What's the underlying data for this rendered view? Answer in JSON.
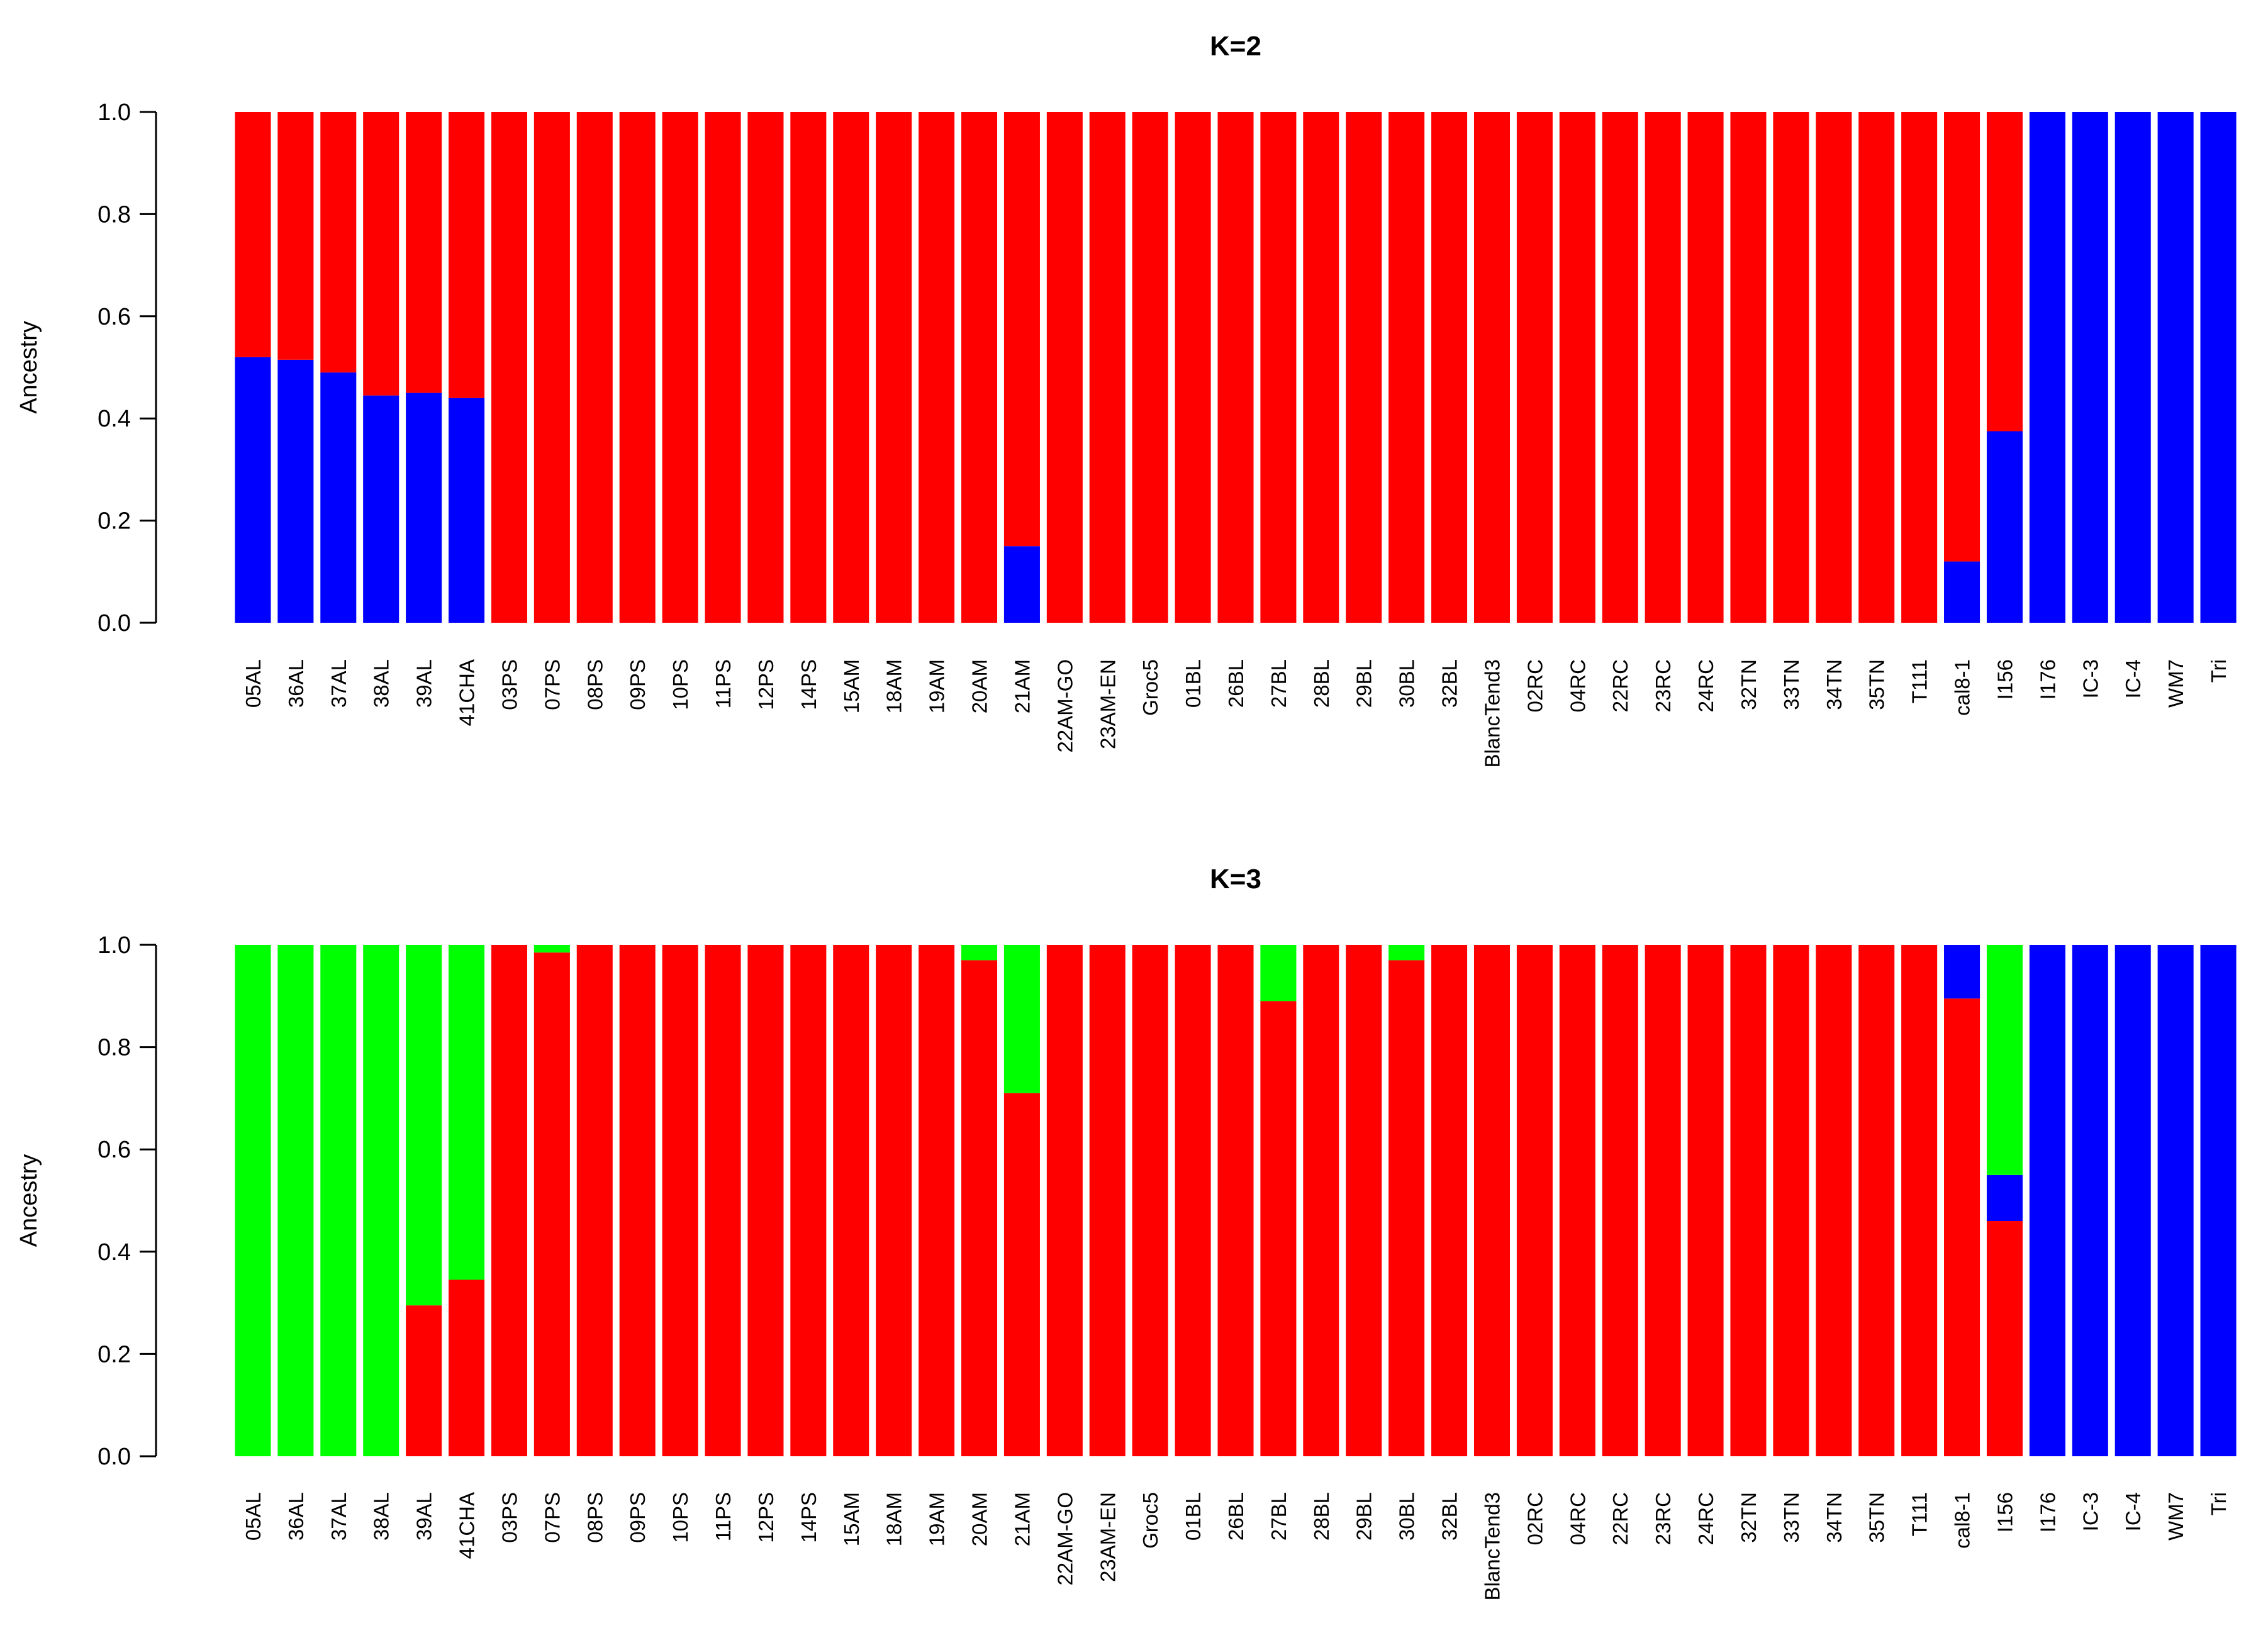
{
  "colors": {
    "blue": "#0000ff",
    "red": "#ff0000",
    "green": "#00ff00"
  },
  "chart_data": [
    {
      "type": "bar",
      "stacked": true,
      "title": "K=2",
      "ylabel": "Ancestry",
      "xlabel": "",
      "ylim": [
        0,
        1
      ],
      "yticks": [
        "0.0",
        "0.2",
        "0.4",
        "0.6",
        "0.8",
        "1.0"
      ],
      "grid": false,
      "categories": [
        "05AL",
        "36AL",
        "37AL",
        "38AL",
        "39AL",
        "41CHA",
        "03PS",
        "07PS",
        "08PS",
        "09PS",
        "10PS",
        "11PS",
        "12PS",
        "14PS",
        "15AM",
        "18AM",
        "19AM",
        "20AM",
        "21AM",
        "22AM-GO",
        "23AM-EN",
        "Groc5",
        "01BL",
        "26BL",
        "27BL",
        "28BL",
        "29BL",
        "30BL",
        "32BL",
        "BlancTend3",
        "02RC",
        "04RC",
        "22RC",
        "23RC",
        "24RC",
        "32TN",
        "33TN",
        "34TN",
        "35TN",
        "T111",
        "cal8-1",
        "I156",
        "I176",
        "IC-3",
        "IC-4",
        "WM7",
        "Tri"
      ],
      "series": [
        {
          "color": "#0000ff",
          "values": [
            0.52,
            0.515,
            0.49,
            0.445,
            0.45,
            0.44,
            0,
            0,
            0,
            0,
            0,
            0,
            0,
            0,
            0,
            0,
            0,
            0,
            0.15,
            0,
            0,
            0,
            0,
            0,
            0,
            0,
            0,
            0,
            0,
            0,
            0,
            0,
            0,
            0,
            0,
            0,
            0,
            0,
            0,
            0,
            0.12,
            0.375,
            1,
            1,
            1,
            1,
            1
          ]
        },
        {
          "color": "#ff0000",
          "values": [
            0.48,
            0.485,
            0.51,
            0.555,
            0.55,
            0.56,
            1,
            1,
            1,
            1,
            1,
            1,
            1,
            1,
            1,
            1,
            1,
            1,
            0.85,
            1,
            1,
            1,
            1,
            1,
            1,
            1,
            1,
            1,
            1,
            1,
            1,
            1,
            1,
            1,
            1,
            1,
            1,
            1,
            1,
            1,
            0.88,
            0.625,
            0,
            0,
            0,
            0,
            0
          ]
        }
      ]
    },
    {
      "type": "bar",
      "stacked": true,
      "title": "K=3",
      "ylabel": "Ancestry",
      "xlabel": "",
      "ylim": [
        0,
        1
      ],
      "yticks": [
        "0.0",
        "0.2",
        "0.4",
        "0.6",
        "0.8",
        "1.0"
      ],
      "grid": false,
      "categories": [
        "05AL",
        "36AL",
        "37AL",
        "38AL",
        "39AL",
        "41CHA",
        "03PS",
        "07PS",
        "08PS",
        "09PS",
        "10PS",
        "11PS",
        "12PS",
        "14PS",
        "15AM",
        "18AM",
        "19AM",
        "20AM",
        "21AM",
        "22AM-GO",
        "23AM-EN",
        "Groc5",
        "01BL",
        "26BL",
        "27BL",
        "28BL",
        "29BL",
        "30BL",
        "32BL",
        "BlancTend3",
        "02RC",
        "04RC",
        "22RC",
        "23RC",
        "24RC",
        "32TN",
        "33TN",
        "34TN",
        "35TN",
        "T111",
        "cal8-1",
        "I156",
        "I176",
        "IC-3",
        "IC-4",
        "WM7",
        "Tri"
      ],
      "series": [
        {
          "color": "#ff0000",
          "values": [
            0,
            0,
            0,
            0,
            0.295,
            0.345,
            1,
            0.985,
            1,
            1,
            1,
            1,
            1,
            1,
            1,
            1,
            1,
            0.97,
            0.71,
            1,
            1,
            1,
            1,
            1,
            0.89,
            1,
            1,
            0.97,
            1,
            1,
            1,
            1,
            1,
            1,
            1,
            1,
            1,
            1,
            1,
            1,
            0.895,
            0.46,
            0,
            0,
            0,
            0,
            0
          ]
        },
        {
          "color": "#0000ff",
          "values": [
            0,
            0,
            0,
            0,
            0,
            0,
            0,
            0,
            0,
            0,
            0,
            0,
            0,
            0,
            0,
            0,
            0,
            0,
            0,
            0,
            0,
            0,
            0,
            0,
            0,
            0,
            0,
            0,
            0,
            0,
            0,
            0,
            0,
            0,
            0,
            0,
            0,
            0,
            0,
            0,
            0.105,
            0.09,
            1,
            1,
            1,
            1,
            1
          ]
        },
        {
          "color": "#00ff00",
          "values": [
            1,
            1,
            1,
            1,
            0.705,
            0.655,
            0,
            0.015,
            0,
            0,
            0,
            0,
            0,
            0,
            0,
            0,
            0,
            0.03,
            0.29,
            0,
            0,
            0,
            0,
            0,
            0.11,
            0,
            0,
            0.03,
            0,
            0,
            0,
            0,
            0,
            0,
            0,
            0,
            0,
            0,
            0,
            0,
            0,
            0.45,
            0,
            0,
            0,
            0,
            0
          ]
        }
      ]
    }
  ]
}
